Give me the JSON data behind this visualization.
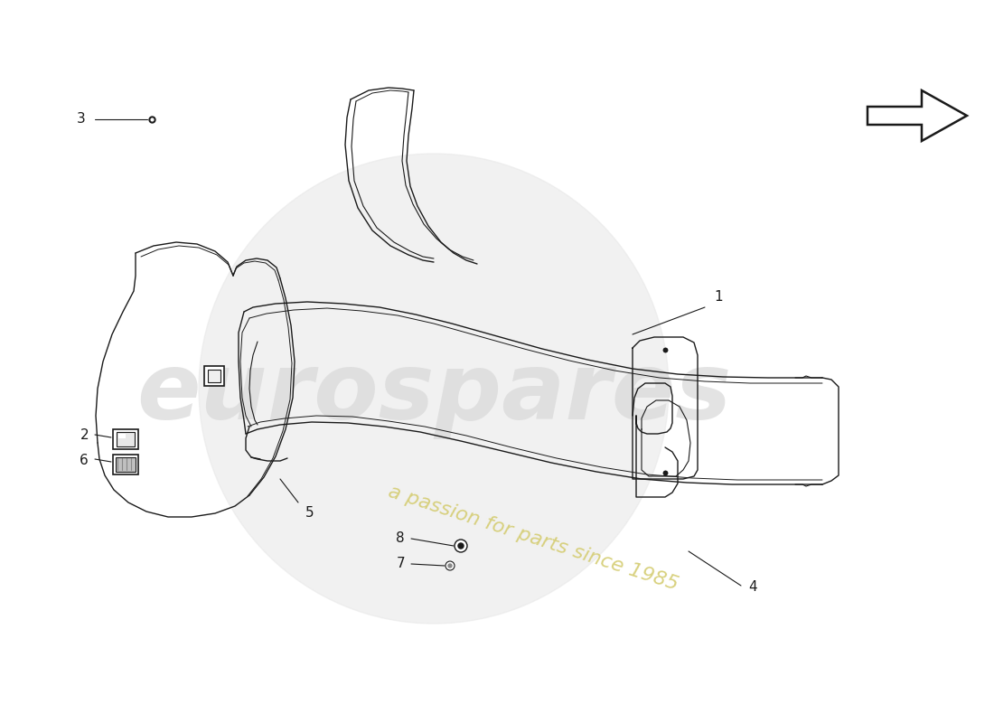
{
  "bg_color": "#ffffff",
  "lc": "#1a1a1a",
  "figsize": [
    11.0,
    8.0
  ],
  "dpi": 100,
  "watermark_text1": "eurospares",
  "watermark_text2": "a passion for parts since 1985"
}
